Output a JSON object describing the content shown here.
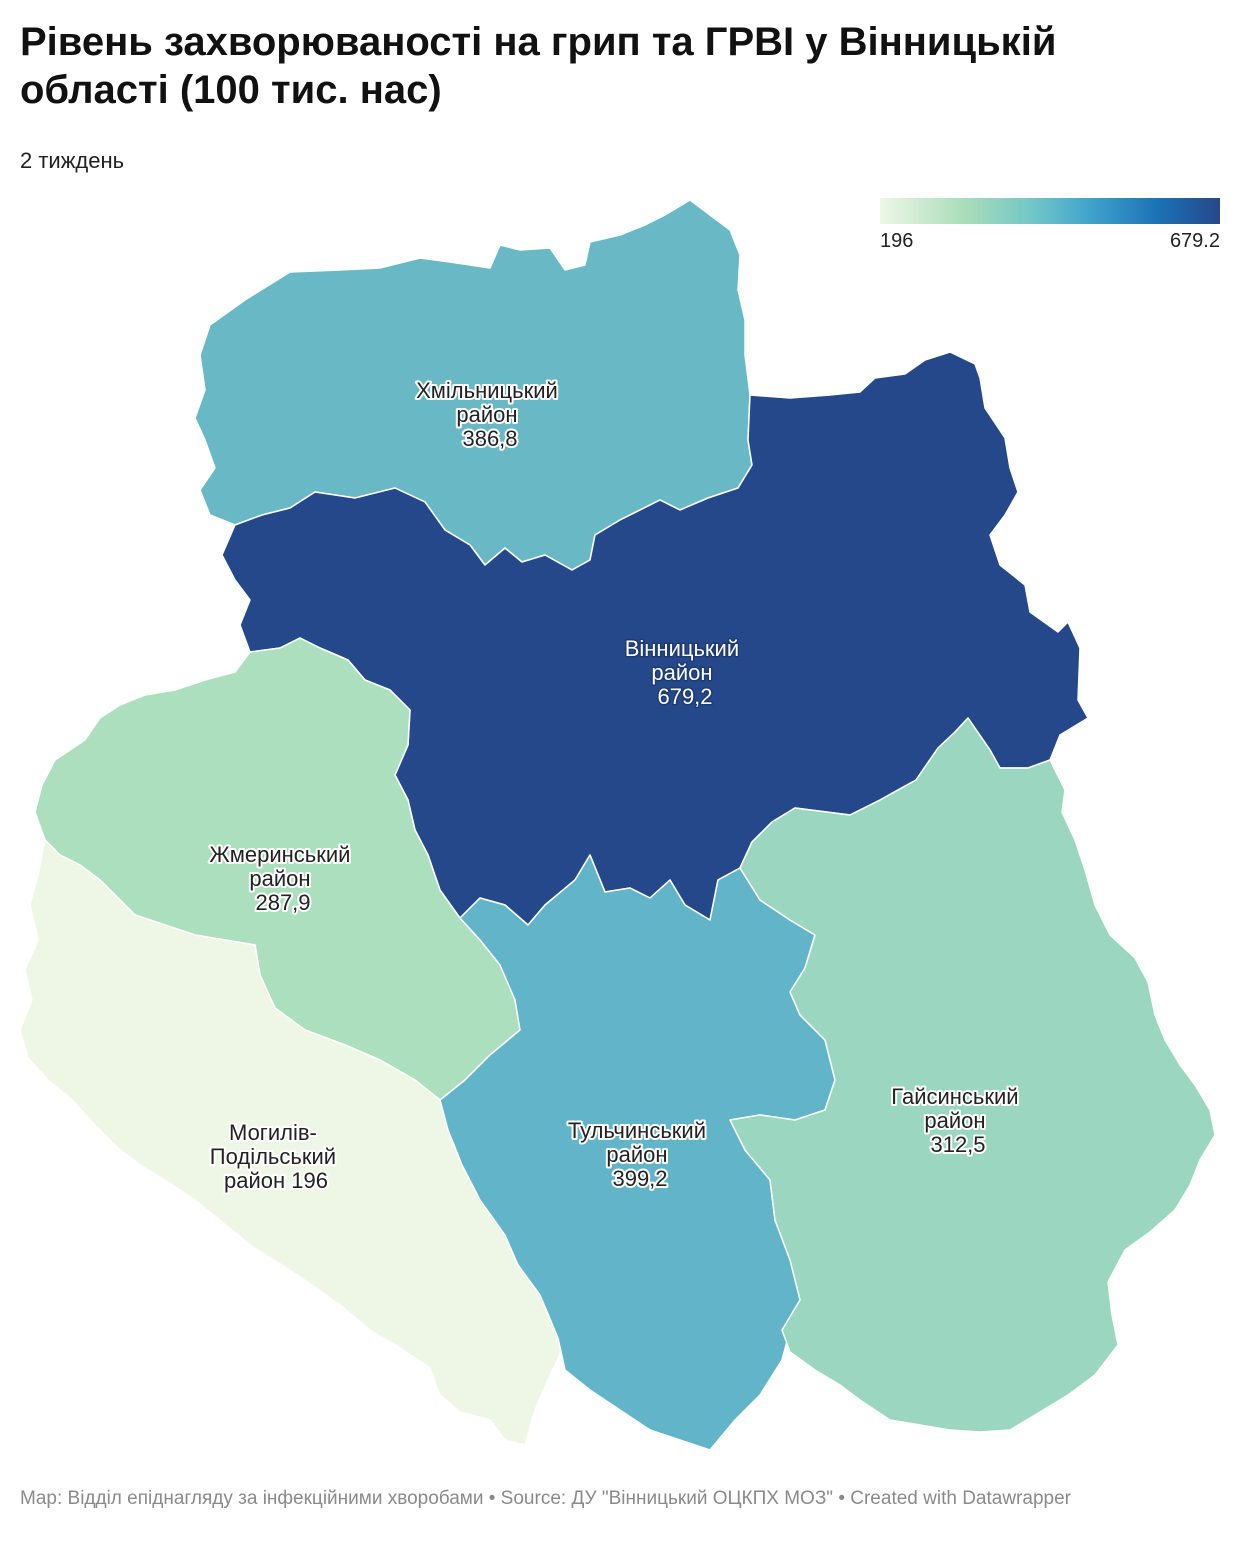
{
  "title": "Рівень захворюваності на грип та ГРВІ у Вінницькій області (100 тис. нас)",
  "subtitle": "2 тиждень",
  "legend": {
    "min": "196",
    "max": "679.2",
    "colors": [
      "#eef7e6",
      "#a9ddb9",
      "#72c6c8",
      "#3fa3cc",
      "#1b71b4",
      "#25488b"
    ]
  },
  "regions": [
    {
      "name": "Хмільницький район",
      "value": "386,8",
      "label": [
        "Хмільницький",
        "район",
        "386,8"
      ],
      "color": "#68b9c5"
    },
    {
      "name": "Вінницький район",
      "value": "679,2",
      "label": [
        "Вінницький",
        "район",
        "679,2"
      ],
      "color": "#25488b"
    },
    {
      "name": "Жмеринський район",
      "value": "287,9",
      "label": [
        "Жмеринський",
        "район",
        "287,9"
      ],
      "color": "#acdfbd"
    },
    {
      "name": "Могилів-Подільський район",
      "value": "196",
      "label": [
        "Могилів-",
        "Подільський",
        "район 196"
      ],
      "color": "#eef7e6"
    },
    {
      "name": "Тульчинський район",
      "value": "399,2",
      "label": [
        "Тульчинський",
        "район",
        "399,2"
      ],
      "color": "#62b4c8"
    },
    {
      "name": "Гайсинський район",
      "value": "312,5",
      "label": [
        "Гайсинський",
        "район",
        "312,5"
      ],
      "color": "#9bd6c0"
    }
  ],
  "footer": "Map: Відділ епіднагляду за інфекційними хворобами  • Source: ДУ \"Вінницький ОЦКПХ МОЗ\" • Created with Datawrapper"
}
